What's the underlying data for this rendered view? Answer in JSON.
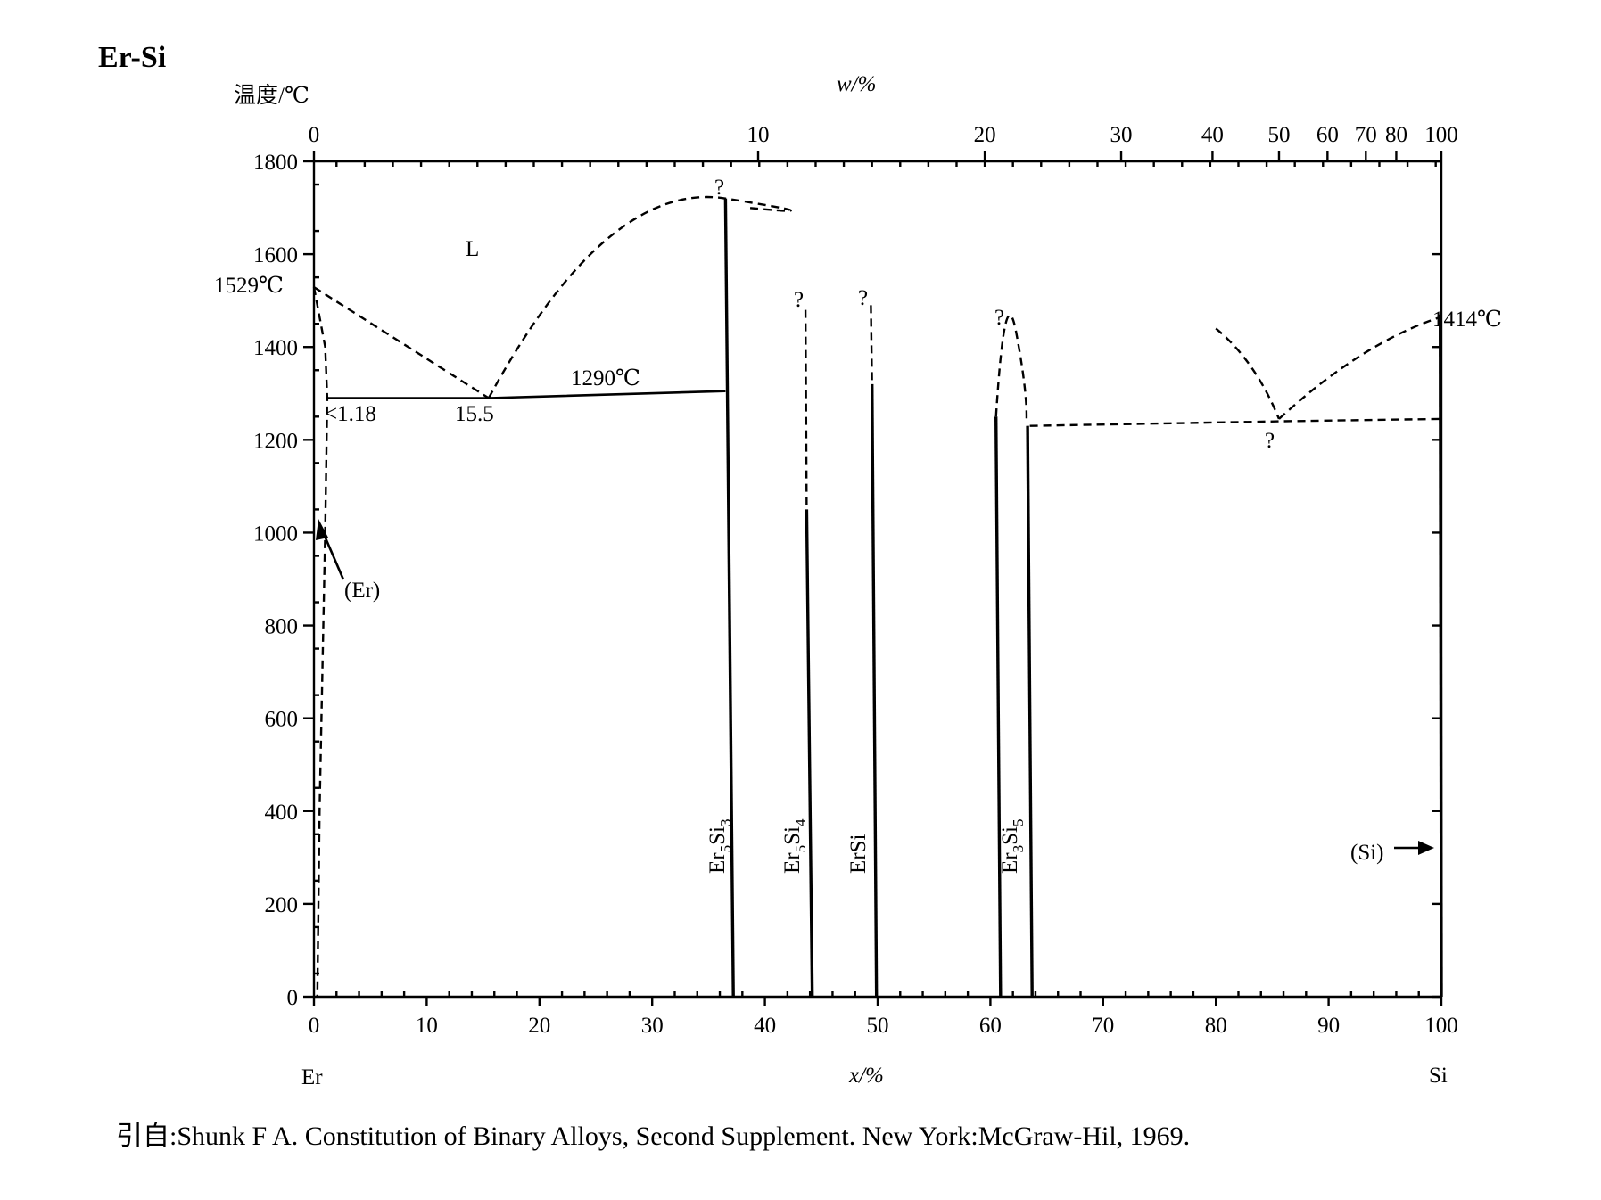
{
  "chart_data": {
    "type": "phase-diagram",
    "title": "Er-Si",
    "ylabel": "温度/℃",
    "xlabel_top": "w/%",
    "xlabel": "x/%",
    "left_component": "Er",
    "right_component": "Si",
    "ylim": [
      0,
      1800
    ],
    "xlim": [
      0,
      100
    ],
    "yticks": [
      0,
      200,
      400,
      600,
      800,
      1000,
      1200,
      1400,
      1600,
      1800
    ],
    "xticks": [
      0,
      10,
      20,
      30,
      40,
      50,
      60,
      70,
      80,
      90,
      100
    ],
    "top_ticks": [
      {
        "label": "0",
        "x": 0
      },
      {
        "label": "10",
        "x": 39.4
      },
      {
        "label": "20",
        "x": 59.5
      },
      {
        "label": "30",
        "x": 71.6
      },
      {
        "label": "40",
        "x": 79.7
      },
      {
        "label": "50",
        "x": 85.6
      },
      {
        "label": "60",
        "x": 89.9
      },
      {
        "label": "70",
        "x": 93.3
      },
      {
        "label": "80",
        "x": 96.0
      },
      {
        "label": "100",
        "x": 100
      }
    ],
    "compounds": [
      {
        "name": "Er5Si3",
        "x": 37.5,
        "top": 1720,
        "tmax_unknown": true
      },
      {
        "name": "Er5Si4",
        "x": 44.4,
        "top": 1500,
        "tmax_unknown": true
      },
      {
        "name": "ErSi",
        "x": 50.0,
        "top": 1500,
        "tmax_unknown": true
      },
      {
        "name": "Er3Si5",
        "x": 62.5,
        "top": 1450,
        "tmax_unknown": true
      }
    ],
    "points": [
      {
        "label": "1529℃",
        "x": 0,
        "y": 1529,
        "note": "Er melting point"
      },
      {
        "label": "1414℃",
        "x": 100,
        "y": 1414,
        "note": "Si melting point"
      },
      {
        "label": "15.5",
        "x": 15.5,
        "y": 1290,
        "note": "eutectic composition"
      },
      {
        "label": "<1.18",
        "x": 1.18,
        "y": 1290,
        "note": "max solubility in (Er)"
      },
      {
        "label": "1290℃",
        "x": 25,
        "y": 1290,
        "note": "eutectic temperature"
      }
    ],
    "annotations": [
      "L",
      "(Er)",
      "(Si)",
      "?"
    ],
    "phase_labels": {
      "liquid": "L",
      "er_solid": "(Er)",
      "si_solid": "(Si)",
      "unknown": "?",
      "eutectic_temp": "1290℃",
      "eutectic_comp": "15.5",
      "er_solubility": "<1.18",
      "er_melt": "1529℃",
      "si_melt": "1414℃"
    },
    "compound_labels": {
      "er5si3_base": "Er",
      "er5si3_sub1": "5",
      "er5si3_mid": "Si",
      "er5si3_sub2": "3",
      "er5si4_base": "Er",
      "er5si4_sub1": "5",
      "er5si4_mid": "Si",
      "er5si4_sub2": "4",
      "ersi": "ErSi",
      "er3si5_base": "Er",
      "er3si5_sub1": "3",
      "er3si5_mid": "Si",
      "er3si5_sub2": "5"
    }
  },
  "citation": "引自:Shunk F A. Constitution of Binary Alloys, Second Supplement. New York:McGraw-Hil, 1969."
}
